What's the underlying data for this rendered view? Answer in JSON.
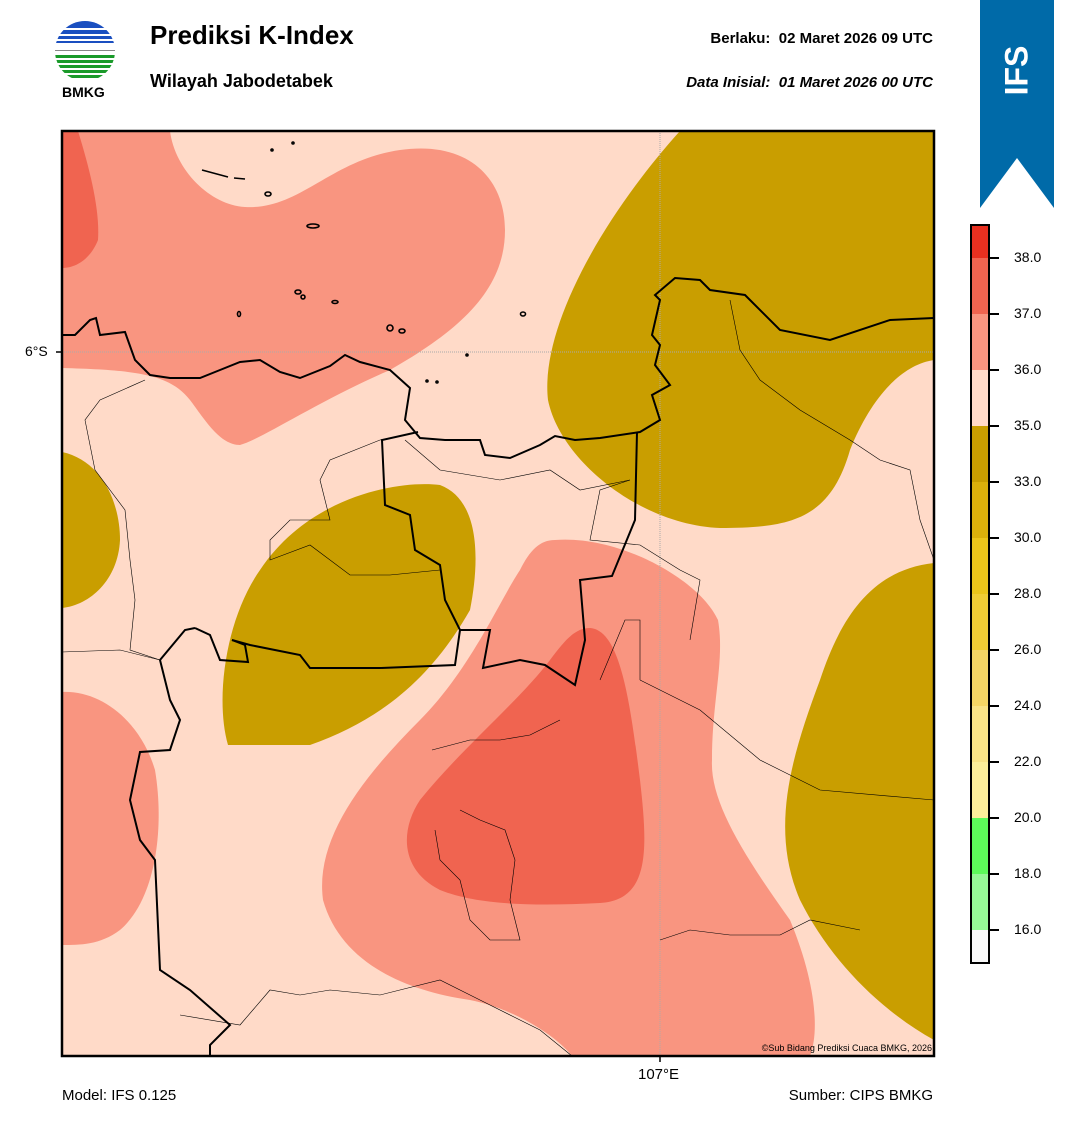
{
  "header": {
    "title": "Prediksi K-Index",
    "subtitle": "Wilayah Jabodetabek",
    "valid_label": "Berlaku:  02 Maret 2026 09 UTC",
    "init_label": "Data Inisial:  01 Maret 2026 00 UTC",
    "logo_text": "BMKG",
    "ribbon_text": "IFS"
  },
  "map": {
    "lat_label": "6°S",
    "lon_label": "107°E",
    "copyright": "©Sub Bidang Prediksi Cuaca BMKG, 2026"
  },
  "footer": {
    "model": "Model: IFS 0.125",
    "source": "Sumber: CIPS BMKG"
  },
  "colorbar": {
    "labels": [
      "38.0",
      "37.0",
      "36.0",
      "35.0",
      "33.0",
      "30.0",
      "28.0",
      "26.0",
      "24.0",
      "22.0",
      "20.0",
      "18.0",
      "16.0"
    ],
    "colors": [
      "#e83020",
      "#f06450",
      "#f99580",
      "#ffdac8",
      "#c99e00",
      "#dbb00b",
      "#ebc41a",
      "#f0cc35",
      "#f5d665",
      "#f9e386",
      "#fcee9a",
      "#5dfa5a",
      "#96f896",
      "#f8f8f8"
    ]
  },
  "colors": {
    "ribbon": "#006aa8",
    "k35_36": "#ffdac8",
    "k36_37": "#f99580",
    "k37_38": "#f06450",
    "k33_35": "#c99e00"
  }
}
